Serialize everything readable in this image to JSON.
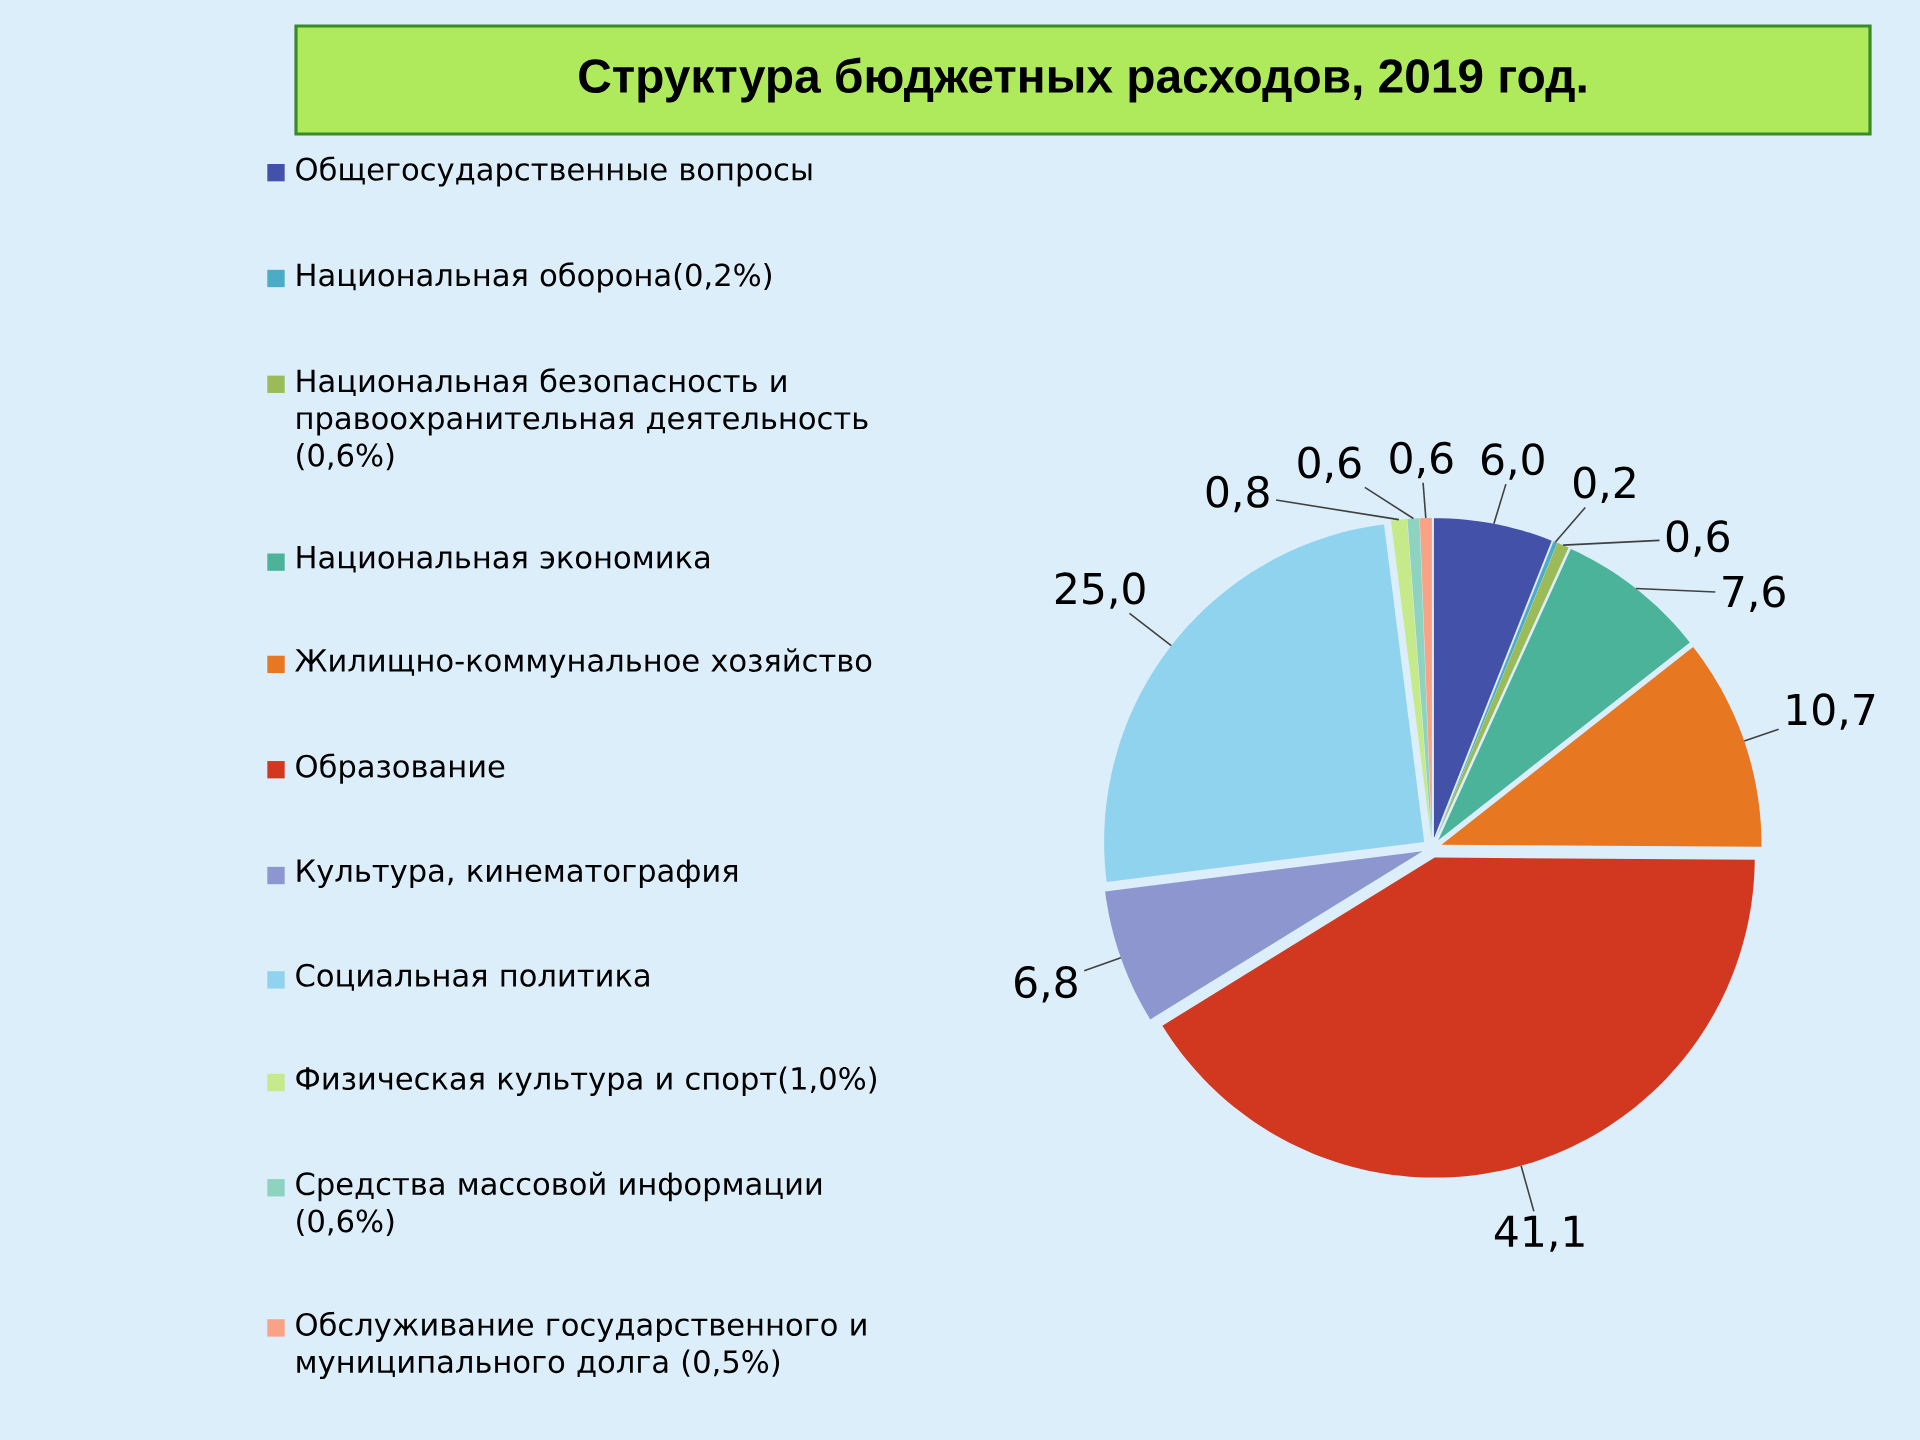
{
  "chart_data": {
    "type": "pie",
    "title": "Структура бюджетных расходов, 2019 год.",
    "categories": [
      "Общегосударственные вопросы",
      "Национальная оборона(0,2%)",
      "Национальная безопасность и правоохранительная деятельность (0,6%)",
      "Национальная экономика",
      "Жилищно-коммунальное хозяйство",
      "Образование",
      "Культура, кинематография",
      "Социальная политика",
      "Физическая культура и спорт(1,0%)",
      "Средства массовой информации (0,6%)",
      "Обслуживание государственного и муниципального долга (0,5%)"
    ],
    "values": [
      6.0,
      0.2,
      0.6,
      7.6,
      10.7,
      41.1,
      6.8,
      25.0,
      0.8,
      0.6,
      0.6
    ],
    "value_labels": [
      "6,0",
      "0,2",
      "0,6",
      "7,6",
      "10,7",
      "41,1",
      "6,8",
      "25,0",
      "0,8",
      "0,6",
      "0,6"
    ],
    "colors": [
      "#4352a8",
      "#4bacc6",
      "#9bbb59",
      "#4bb39a",
      "#e87722",
      "#d2381f",
      "#8e96cf",
      "#8fd3ef",
      "#c6ea8a",
      "#8dd3c0",
      "#f9a285"
    ],
    "legend": "left"
  }
}
